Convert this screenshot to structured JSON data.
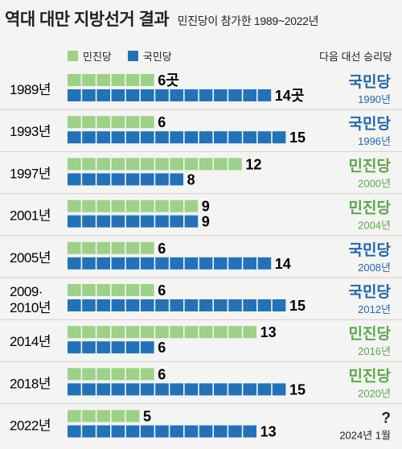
{
  "header": {
    "title": "역대 대만 지방선거 결과",
    "subtitle": "민진당이 참가한 1989~2022년"
  },
  "legend": {
    "next_winner_label": "다음 대선 승리당"
  },
  "colors": {
    "dpp": "#9dd187",
    "kmt": "#2172b8",
    "dpp_text": "#5aa84a",
    "kmt_text": "#1f67b0",
    "background": "#f4f4f2"
  },
  "chart_data": {
    "type": "bar",
    "unit": "곳",
    "series": [
      {
        "name": "민진당",
        "values": [
          6,
          6,
          12,
          9,
          6,
          6,
          13,
          6,
          5
        ]
      },
      {
        "name": "국민당",
        "values": [
          14,
          15,
          8,
          9,
          14,
          15,
          6,
          15,
          13
        ]
      }
    ],
    "rows": [
      {
        "year": [
          "1989년"
        ],
        "dpp": 6,
        "kmt": 14,
        "dpp_label": "6곳",
        "kmt_label": "14곳",
        "winner": "국민당",
        "winner_party": "kmt",
        "date": "1990년"
      },
      {
        "year": [
          "1993년"
        ],
        "dpp": 6,
        "kmt": 15,
        "dpp_label": "6",
        "kmt_label": "15",
        "winner": "국민당",
        "winner_party": "kmt",
        "date": "1996년"
      },
      {
        "year": [
          "1997년"
        ],
        "dpp": 12,
        "kmt": 8,
        "dpp_label": "12",
        "kmt_label": "8",
        "winner": "민진당",
        "winner_party": "dpp",
        "date": "2000년"
      },
      {
        "year": [
          "2001년"
        ],
        "dpp": 9,
        "kmt": 9,
        "dpp_label": "9",
        "kmt_label": "9",
        "winner": "민진당",
        "winner_party": "dpp",
        "date": "2004년"
      },
      {
        "year": [
          "2005년"
        ],
        "dpp": 6,
        "kmt": 14,
        "dpp_label": "6",
        "kmt_label": "14",
        "winner": "국민당",
        "winner_party": "kmt",
        "date": "2008년"
      },
      {
        "year": [
          "2009·",
          "2010년"
        ],
        "dpp": 6,
        "kmt": 15,
        "dpp_label": "6",
        "kmt_label": "15",
        "winner": "국민당",
        "winner_party": "kmt",
        "date": "2012년"
      },
      {
        "year": [
          "2014년"
        ],
        "dpp": 13,
        "kmt": 6,
        "dpp_label": "13",
        "kmt_label": "6",
        "winner": "민진당",
        "winner_party": "dpp",
        "date": "2016년"
      },
      {
        "year": [
          "2018년"
        ],
        "dpp": 6,
        "kmt": 15,
        "dpp_label": "6",
        "kmt_label": "15",
        "winner": "민진당",
        "winner_party": "dpp",
        "date": "2020년"
      },
      {
        "year": [
          "2022년"
        ],
        "dpp": 5,
        "kmt": 13,
        "dpp_label": "5",
        "kmt_label": "13",
        "winner": "?",
        "winner_party": "unknown",
        "date": "2024년 1월"
      }
    ]
  }
}
